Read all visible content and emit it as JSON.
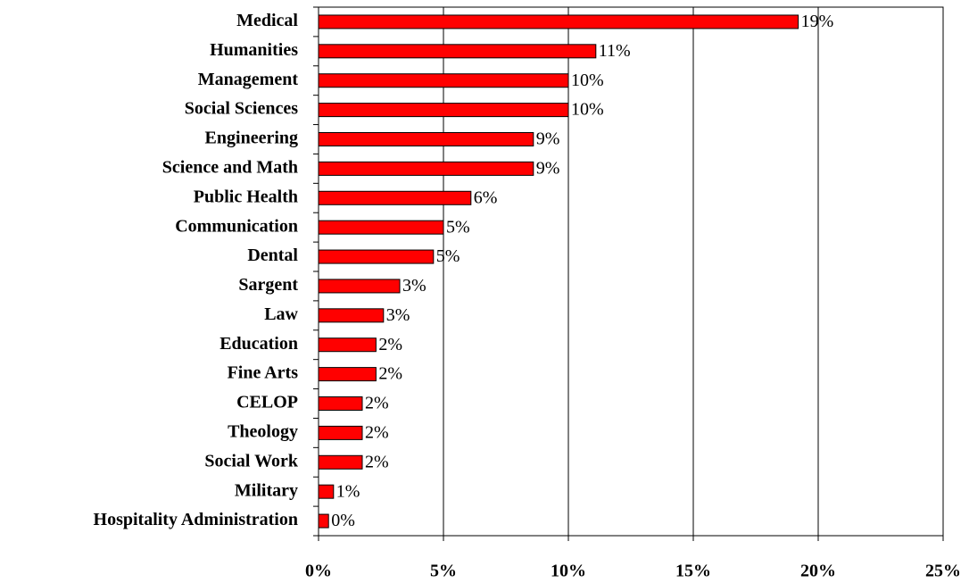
{
  "chart_data": {
    "type": "bar",
    "orientation": "horizontal",
    "categories": [
      "Medical",
      "Humanities",
      "Management",
      "Social Sciences",
      "Engineering",
      "Science and Math",
      "Public Health",
      "Communication",
      "Dental",
      "Sargent",
      "Law",
      "Education",
      "Fine Arts",
      "CELOP",
      "Theology",
      "Social Work",
      "Military",
      "Hospitality Administration"
    ],
    "values": [
      19.2,
      11.1,
      10.0,
      10.0,
      8.6,
      8.6,
      6.1,
      5.0,
      4.6,
      3.25,
      2.6,
      2.3,
      2.3,
      1.75,
      1.75,
      1.75,
      0.6,
      0.4
    ],
    "value_labels": [
      "19%",
      "11%",
      "10%",
      "10%",
      "9%",
      "9%",
      "6%",
      "5%",
      "5%",
      "3%",
      "3%",
      "2%",
      "2%",
      "2%",
      "2%",
      "2%",
      "1%",
      "0%"
    ],
    "color": "#ff0000",
    "xlim": [
      0,
      25
    ],
    "xticks": [
      {
        "value": 0,
        "label": "0%"
      },
      {
        "value": 5,
        "label": "5%"
      },
      {
        "value": 10,
        "label": "10%"
      },
      {
        "value": 15,
        "label": "15%"
      },
      {
        "value": 20,
        "label": "20%"
      },
      {
        "value": 25,
        "label": "25%"
      }
    ],
    "grid": true
  }
}
